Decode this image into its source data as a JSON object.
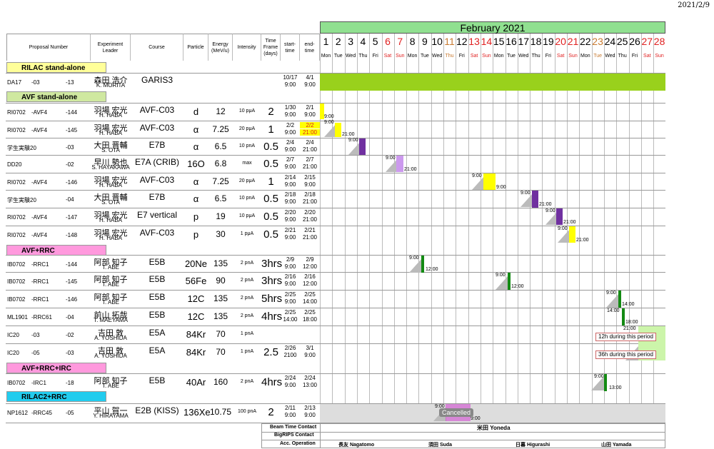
{
  "date": "2021/2/9",
  "month": "February 2021",
  "headers": {
    "proposal": "Proposal Number",
    "leader": "Experiment Leader",
    "course": "Course",
    "particle": "Particle",
    "energy": "Energy (MeV/u)",
    "intensity": "Intensity",
    "timeframe": "Time Frame (days)",
    "start": "start-time",
    "end": "end-time"
  },
  "days": [
    "1",
    "2",
    "3",
    "4",
    "5",
    "6",
    "7",
    "8",
    "9",
    "10",
    "11",
    "12",
    "13",
    "14",
    "15",
    "16",
    "17",
    "18",
    "19",
    "20",
    "21",
    "22",
    "23",
    "24",
    "25",
    "26",
    "27",
    "28"
  ],
  "weekdays": [
    "Mon",
    "Tue",
    "Wed",
    "Thu",
    "Fri",
    "Sat",
    "Sun",
    "Mon",
    "Tue",
    "Wed",
    "Thu",
    "Fri",
    "Sat",
    "Sun",
    "Mon",
    "Tue",
    "Wed",
    "Thu",
    "Fri",
    "Sat",
    "Sun",
    "Mon",
    "Tue",
    "Wed",
    "Thu",
    "Fri",
    "Sat",
    "Sun"
  ],
  "sections": {
    "rilac": "RILAC stand-alone",
    "avf": "AVF stand-alone",
    "avfrrc": "AVF+RRC",
    "avfrrcirc": "AVF+RRC+IRC",
    "rilac2": "RILAC2+RRC"
  },
  "rows": [
    {
      "p1": "DA17",
      "p2": "-03",
      "p3": "-13",
      "jp": "森田 浩介",
      "en": "K. MORITA",
      "course": "GARIS3",
      "particle": "",
      "energy": "",
      "intensity": "",
      "tf": "",
      "s1": "10/17",
      "s2": "9:00",
      "e1": "4/1",
      "e2": "9:00"
    },
    {
      "p1": "RI0702",
      "p2": "-AVF4",
      "p3": "-144",
      "jp": "羽場 宏光",
      "en": "H. HABA",
      "course": "AVF-C03",
      "particle": "d",
      "energy": "12",
      "intensity": "10 pμA",
      "tf": "2",
      "s1": "1/30",
      "s2": "9:00",
      "e1": "2/1",
      "e2": "9:00"
    },
    {
      "p1": "RI0702",
      "p2": "-AVF4",
      "p3": "-145",
      "jp": "羽場 宏光",
      "en": "H. HABA",
      "course": "AVF-C03",
      "particle": "α",
      "energy": "7.25",
      "intensity": "20 pμA",
      "tf": "1",
      "s1": "2/2",
      "s2": "9:00",
      "e1": "2/2",
      "e2": "21:00"
    },
    {
      "p1": "学生実験20",
      "p2": "",
      "p3": "-03",
      "jp": "大田 晋輔",
      "en": "S. OTA",
      "course": "E7B",
      "particle": "α",
      "energy": "6.5",
      "intensity": "10 pnA",
      "tf": "0.5",
      "s1": "2/4",
      "s2": "9:00",
      "e1": "2/4",
      "e2": "21:00"
    },
    {
      "p1": "DD20",
      "p2": "",
      "p3": "-02",
      "jp": "早川 勢也",
      "en": "S. HAYAKAWA",
      "course": "E7A (CRIB)",
      "particle": "16O",
      "energy": "6.8",
      "intensity": "max",
      "tf": "0.5",
      "s1": "2/7",
      "s2": "9:00",
      "e1": "2/7",
      "e2": "21:00"
    },
    {
      "p1": "RI0702",
      "p2": "-AVF4",
      "p3": "-146",
      "jp": "羽場 宏光",
      "en": "H. HABA",
      "course": "AVF-C03",
      "particle": "α",
      "energy": "7.25",
      "intensity": "20 pμA",
      "tf": "1",
      "s1": "2/14",
      "s2": "9:00",
      "e1": "2/15",
      "e2": "9:00"
    },
    {
      "p1": "学生実験20",
      "p2": "",
      "p3": "-04",
      "jp": "大田 晋輔",
      "en": "S. OTA",
      "course": "E7B",
      "particle": "α",
      "energy": "6.5",
      "intensity": "10 pnA",
      "tf": "0.5",
      "s1": "2/18",
      "s2": "9:00",
      "e1": "2/18",
      "e2": "21:00"
    },
    {
      "p1": "RI0702",
      "p2": "-AVF4",
      "p3": "-147",
      "jp": "羽場 宏光",
      "en": "H. HABA",
      "course": "E7 vertical",
      "particle": "p",
      "energy": "19",
      "intensity": "10 pμA",
      "tf": "0.5",
      "s1": "2/20",
      "s2": "9:00",
      "e1": "2/20",
      "e2": "21:00"
    },
    {
      "p1": "RI0702",
      "p2": "-AVF4",
      "p3": "-148",
      "jp": "羽場 宏光",
      "en": "H. HABA",
      "course": "AVF-C03",
      "particle": "p",
      "energy": "30",
      "intensity": "1 pμA",
      "tf": "0.5",
      "s1": "2/21",
      "s2": "9:00",
      "e1": "2/21",
      "e2": "21:00"
    },
    {
      "p1": "IB0702",
      "p2": "-RRC1",
      "p3": "-144",
      "jp": "阿部 知子",
      "en": "T. ABE",
      "course": "E5B",
      "particle": "20Ne",
      "energy": "135",
      "intensity": "2 pnA",
      "tf": "3hrs",
      "s1": "2/9",
      "s2": "9:00",
      "e1": "2/9",
      "e2": "12:00"
    },
    {
      "p1": "IB0702",
      "p2": "-RRC1",
      "p3": "-145",
      "jp": "阿部 知子",
      "en": "T. ABE",
      "course": "E5B",
      "particle": "56Fe",
      "energy": "90",
      "intensity": "2 pnA",
      "tf": "3hrs",
      "s1": "2/16",
      "s2": "9:00",
      "e1": "2/16",
      "e2": "12:00"
    },
    {
      "p1": "IB0702",
      "p2": "-RRC1",
      "p3": "-146",
      "jp": "阿部 知子",
      "en": "T. ABE",
      "course": "E5B",
      "particle": "12C",
      "energy": "135",
      "intensity": "2 pnA",
      "tf": "5hrs",
      "s1": "2/25",
      "s2": "9:00",
      "e1": "2/25",
      "e2": "14:00"
    },
    {
      "p1": "ML1901",
      "p2": "-RRC61",
      "p3": "-04",
      "jp": "前山 拓哉",
      "en": "T. MAEYAMA",
      "course": "E5B",
      "particle": "12C",
      "energy": "135",
      "intensity": "2 pnA",
      "tf": "4hrs",
      "s1": "2/25",
      "s2": "14:00",
      "e1": "2/25",
      "e2": "18:00"
    },
    {
      "p1": "IC20",
      "p2": "-03",
      "p3": "-02",
      "jp": "吉田 敦",
      "en": "A. YOSHIDA",
      "course": "E5A",
      "particle": "84Kr",
      "energy": "70",
      "intensity": "1 pnA",
      "tf": "",
      "s1": "",
      "s2": "",
      "e1": "",
      "e2": ""
    },
    {
      "p1": "IC20",
      "p2": "-05",
      "p3": "-03",
      "jp": "吉田 敦",
      "en": "A. YOSHIDA",
      "course": "E5A",
      "particle": "84Kr",
      "energy": "70",
      "intensity": "1 pnA",
      "tf": "2.5",
      "s1": "2/26",
      "s2": "2100",
      "e1": "3/1",
      "e2": "9:00"
    },
    {
      "p1": "IB0702",
      "p2": "-IRC1",
      "p3": "-18",
      "jp": "阿部 知子",
      "en": "T. ABE",
      "course": "E5B",
      "particle": "40Ar",
      "energy": "160",
      "intensity": "2 pnA",
      "tf": "4hrs",
      "s1": "2/24",
      "s2": "9:00",
      "e1": "2/24",
      "e2": "13:00"
    },
    {
      "p1": "NP1612",
      "p2": "-RRC45",
      "p3": "-05",
      "jp": "平山 賀一",
      "en": "Y. HIRAYAMA",
      "course": "E2B (KISS)",
      "particle": "136Xe",
      "energy": "10.75",
      "intensity": "100 pnA",
      "tf": "2",
      "s1": "2/11",
      "s2": "9:00",
      "e1": "2/13",
      "e2": "9:00"
    }
  ],
  "notes": {
    "n1": "12h during this period",
    "n2": "36h during this period",
    "cancelled": "Cancelled"
  },
  "gantt": {
    "l1": "9:00",
    "l2a": "9:00",
    "l2b": "21:00",
    "l3a": "9:00",
    "l4a": "9:00",
    "l4b": "21:00",
    "l5a": "9:00",
    "l5b": "9:00",
    "l6a": "9:00",
    "l6b": "21:00",
    "l7a": "9:00",
    "l7b": "21:00",
    "l8a": "9:00",
    "l8b": "21:00",
    "l9a": "9:00",
    "l9b": "12:00",
    "l10a": "9:00",
    "l10b": "12:00",
    "l11a": "9:00",
    "l11b": "14:00",
    "l12a": "14:00",
    "l12b": "18:00",
    "l13a": "21:00",
    "l15a": "9:00",
    "l15b": "13:00",
    "l16a": "9:00",
    "l16b": "9:00"
  },
  "contacts": {
    "beam": "Beam Time Contact",
    "bigrips": "BigRIPS Contact",
    "acc": "Acc. Operation",
    "beam_name": "米田 Yoneda",
    "acc1": "長友 Nagatomo",
    "acc2": "須田 Suda",
    "acc3": "日暮 Higurashi",
    "acc4": "山田 Yamada"
  },
  "colors": {
    "green": "#99d11c",
    "yellow": "#ffff00",
    "purple": "#7030a0",
    "lilac": "#cc99ee",
    "darkgreen": "#138a13",
    "pink": "#ff99dd",
    "cyan": "#22ccee",
    "magenta": "#d040d0"
  }
}
